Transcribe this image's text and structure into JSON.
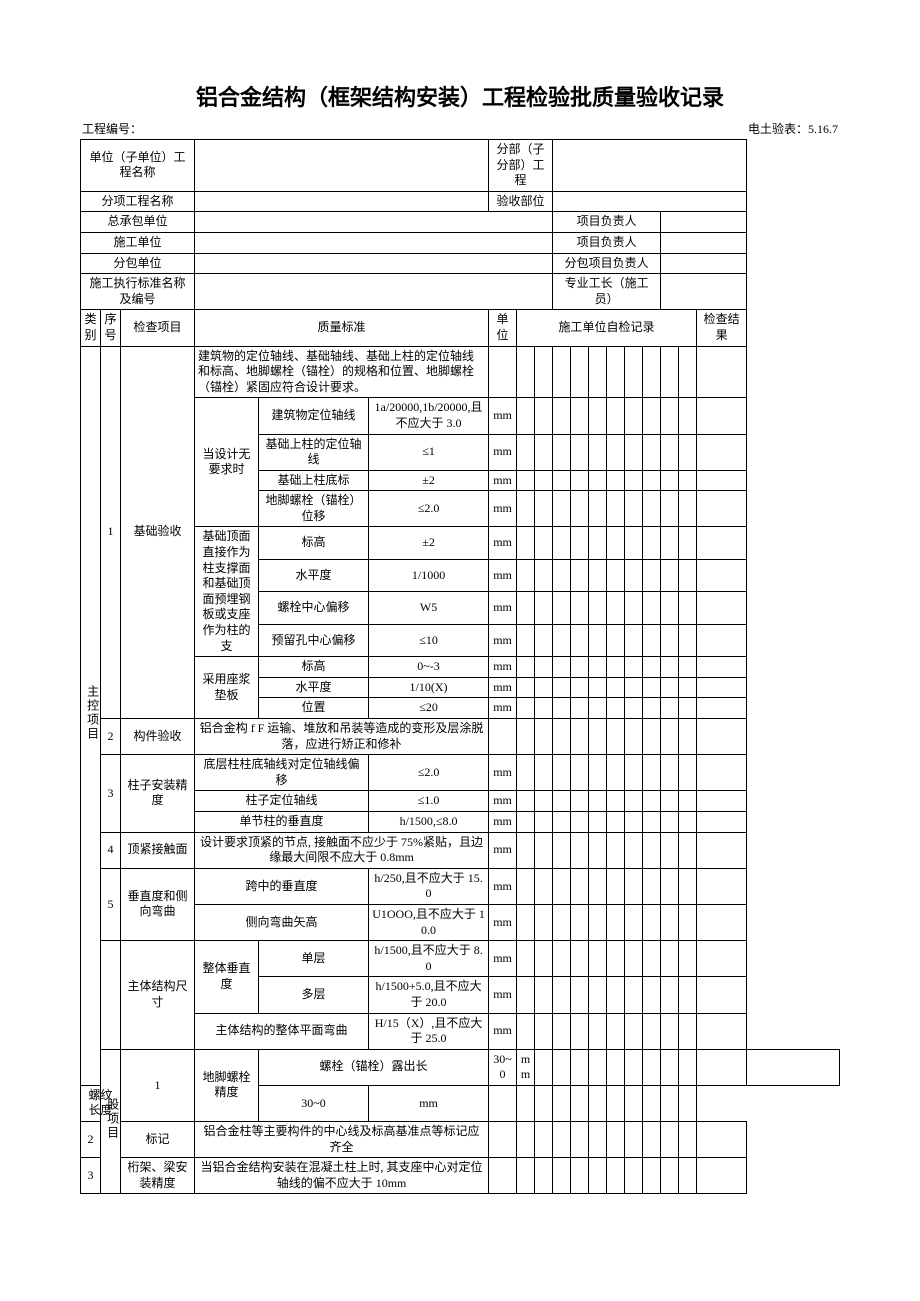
{
  "title": "铝合金结构（框架结构安装）工程检验批质量验收记录",
  "topline_left": "工程编号：",
  "topline_right": "电土验表：5.16.7",
  "header": {
    "unit_proj_label": "单位（子单位）工程名称",
    "sub_proj_label": "分部（子分部）工程",
    "sub_item_label": "分项工程名称",
    "accept_part_label": "验收部位",
    "gen_contractor_label": "总承包单位",
    "proj_leader_label": "项目负责人",
    "builder_label": "施工单位",
    "proj_leader_label2": "项目负责人",
    "subcontractor_label": "分包单位",
    "sub_proj_leader_label": "分包项目负责人",
    "std_label": "施工执行标准名称及编号",
    "foreman_label": "专业工长（施工员）"
  },
  "col_headers": {
    "category": "类别",
    "seq": "序号",
    "item": "检查项目",
    "std": "质量标准",
    "unit": "单位",
    "self_check": "施工单位自检记录",
    "result": "检查结果"
  },
  "cat_main": "主控项目",
  "cat_gen": "股项目",
  "items": {
    "m1": {
      "num": "1",
      "name": "基础验收",
      "std_top": "建筑物的定位轴线、基础轴线、基础上柱的定位轴线和标高、地脚螺栓（锚栓）的规格和位置、地脚螺栓（锚栓）紧固应符合设计要求。",
      "grp_a": "当设计无要求时",
      "a1_name": "建筑物定位轴线",
      "a1_std": "1a/20000,1b/20000,且不应大于 3.0",
      "a1_unit": "mm",
      "a2_name": "基础上柱的定位轴线",
      "a2_std": "≤1",
      "a2_unit": "mm",
      "a3_name": "基础上柱底标",
      "a3_std": "±2",
      "a3_unit": "mm",
      "a4_name": "地脚螺栓（锚栓）位移",
      "a4_std": "≤2.0",
      "a4_unit": "mm",
      "grp_b": "基础顶面直接作为柱支撑面和基础顶面预埋钢板或支座作为柱的支",
      "b1_name": "标高",
      "b1_std": "±2",
      "b1_unit": "mm",
      "b2_name": "水平度",
      "b2_std": "1/1000",
      "b2_unit": "mm",
      "b3_name": "螺栓中心偏移",
      "b3_std": "W5",
      "b3_unit": "mm",
      "b4_name": "预留孔中心偏移",
      "b4_std": "≤10",
      "b4_unit": "mm",
      "grp_c": "采用座浆垫板",
      "c1_name": "标高",
      "c1_std": "0~-3",
      "c1_unit": "mm",
      "c2_name": "水平度",
      "c2_std": "1/10(X)",
      "c2_unit": "mm",
      "c3_name": "位置",
      "c3_std": "≤20",
      "c3_unit": "mm"
    },
    "m2": {
      "num": "2",
      "name": "构件验收",
      "std": "铝合金构 f F 运输、堆放和吊装等造成的变形及层涂脱落，应进行矫正和修补"
    },
    "m3": {
      "num": "3",
      "name": "柱子安装精度",
      "r1_name": "底层柱柱底轴线对定位轴线偏移",
      "r1_std": "≤2.0",
      "r1_unit": "mm",
      "r2_name": "柱子定位轴线",
      "r2_std": "≤1.0",
      "r2_unit": "mm",
      "r3_name": "单节柱的垂直度",
      "r3_std": "h/1500,≤8.0",
      "r3_unit": "mm"
    },
    "m4": {
      "num": "4",
      "name": "顶紧接触面",
      "r1_name": "设计要求顶紧的节点, 接触面不应少于 75%紧贴，且边缘最大间限不应大于 0.8mm",
      "r1_unit": "mm"
    },
    "m5": {
      "num": "5",
      "name": "垂直度和侧向弯曲",
      "r1_name": "跨中的垂直度",
      "r1_std": "h/250,且不应大于 15.0",
      "r1_unit": "mm",
      "r2_name": "侧向弯曲矢高",
      "r2_std": "U1OOO,且不应大于 10.0",
      "r2_unit": "mm"
    },
    "m6": {
      "name": "主体结构尺寸",
      "grp": "整体垂直度",
      "r1_name": "单层",
      "r1_std": "h/1500,且不应大于 8.0",
      "r1_unit": "mm",
      "r2_name": "多层",
      "r2_std": "h/1500+5.0,且不应大于 20.0",
      "r2_unit": "mm",
      "r3_name": "主体结构的整体平面弯曲",
      "r3_std": "H/15（X）,且不应大于 25.0",
      "r3_unit": "mm"
    },
    "g1": {
      "num": "1",
      "name": "地脚螺栓精度",
      "r1_name": "螺栓（锚栓）露出长",
      "r1_std": "30~0",
      "r1_unit": "mm",
      "r2_name": "螺纹长度",
      "r2_std": "30~0",
      "r2_unit": "mm"
    },
    "g2": {
      "num": "2",
      "name": "标记",
      "std": "铝合金柱等主要构件的中心线及标高基准点等标记应齐全"
    },
    "g3": {
      "num": "3",
      "name": "桁架、梁安装精度",
      "std": "当铝合金结构安装在混凝土柱上时, 其支座中心对定位轴线的偏不应大于 10mm"
    }
  },
  "style": {
    "page_bg": "#ffffff",
    "text_color": "#000000",
    "border_color": "#000000",
    "title_fontsize": 22,
    "body_fontsize": 12
  }
}
